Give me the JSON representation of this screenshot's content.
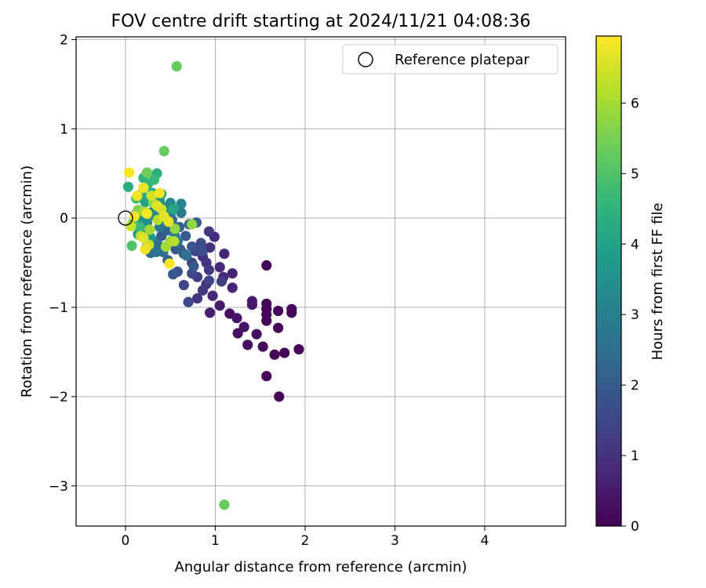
{
  "chart_data": {
    "type": "scatter",
    "title": "FOV centre drift starting at 2024/11/21 04:08:36",
    "xlabel": "Angular distance from reference (arcmin)",
    "ylabel": "Rotation from reference (arcmin)",
    "xlim": [
      -0.55,
      4.9
    ],
    "ylim": [
      -3.45,
      2.03
    ],
    "xticks": [
      0,
      1,
      2,
      3,
      4
    ],
    "yticks": [
      -3,
      -2,
      -1,
      0,
      1,
      2
    ],
    "grid": true,
    "legend": {
      "location": "top-right",
      "entries": [
        {
          "label": "Reference platepar",
          "marker": "open-circle"
        }
      ]
    },
    "reference_point": {
      "x": 0,
      "y": 0
    },
    "colorbar": {
      "label": "Hours from first FF file",
      "range": [
        0,
        6.95
      ],
      "ticks": [
        0,
        1,
        2,
        3,
        4,
        5,
        6
      ],
      "colormap": "viridis",
      "stops": [
        "#440154",
        "#482878",
        "#3e4989",
        "#31688e",
        "#26828e",
        "#1f9e89",
        "#35b779",
        "#6ece58",
        "#b5de2b",
        "#fde725"
      ]
    },
    "series": [
      {
        "points": [
          {
            "x": 1.57,
            "y": -0.53,
            "c": 0.1
          },
          {
            "x": 1.57,
            "y": -0.96,
            "c": 0.1
          },
          {
            "x": 1.57,
            "y": -1.02,
            "c": 0.1
          },
          {
            "x": 1.57,
            "y": -1.08,
            "c": 0.1
          },
          {
            "x": 1.57,
            "y": -1.15,
            "c": 0.1
          },
          {
            "x": 1.7,
            "y": -1.04,
            "c": 0.1
          },
          {
            "x": 1.7,
            "y": -1.23,
            "c": 0.1
          },
          {
            "x": 1.85,
            "y": -1.02,
            "c": 0.1
          },
          {
            "x": 1.85,
            "y": -1.06,
            "c": 0.1
          },
          {
            "x": 1.93,
            "y": -1.47,
            "c": 0.1
          },
          {
            "x": 1.77,
            "y": -1.51,
            "c": 0.1
          },
          {
            "x": 1.66,
            "y": -1.53,
            "c": 0.1
          },
          {
            "x": 1.57,
            "y": -1.77,
            "c": 0.1
          },
          {
            "x": 1.71,
            "y": -2.0,
            "c": 0.1
          },
          {
            "x": 1.53,
            "y": -1.44,
            "c": 0.2
          },
          {
            "x": 1.46,
            "y": -1.3,
            "c": 0.3
          },
          {
            "x": 1.36,
            "y": -1.42,
            "c": 0.3
          },
          {
            "x": 1.25,
            "y": -1.29,
            "c": 0.3
          },
          {
            "x": 1.16,
            "y": -1.07,
            "c": 0.3
          },
          {
            "x": 1.24,
            "y": -1.12,
            "c": 0.4
          },
          {
            "x": 1.32,
            "y": -1.22,
            "c": 0.4
          },
          {
            "x": 1.41,
            "y": -0.93,
            "c": 0.5
          },
          {
            "x": 1.41,
            "y": -0.97,
            "c": 0.5
          },
          {
            "x": 1.05,
            "y": -0.98,
            "c": 0.5
          },
          {
            "x": 0.94,
            "y": -1.06,
            "c": 0.6
          },
          {
            "x": 1.19,
            "y": -0.62,
            "c": 0.7
          },
          {
            "x": 1.19,
            "y": -0.78,
            "c": 0.7
          },
          {
            "x": 1.1,
            "y": -0.4,
            "c": 0.7
          },
          {
            "x": 1.09,
            "y": -0.66,
            "c": 0.8
          },
          {
            "x": 1.05,
            "y": -0.55,
            "c": 0.8
          },
          {
            "x": 0.97,
            "y": -0.87,
            "c": 0.8
          },
          {
            "x": 0.99,
            "y": -0.21,
            "c": 0.9
          },
          {
            "x": 0.94,
            "y": -0.33,
            "c": 1.0
          },
          {
            "x": 0.86,
            "y": -0.43,
            "c": 1.0
          },
          {
            "x": 0.9,
            "y": -0.74,
            "c": 1.0
          },
          {
            "x": 0.9,
            "y": -0.5,
            "c": 1.0
          },
          {
            "x": 0.8,
            "y": -0.9,
            "c": 1.1
          },
          {
            "x": 0.93,
            "y": -0.15,
            "c": 1.1
          },
          {
            "x": 0.86,
            "y": -0.81,
            "c": 1.2
          },
          {
            "x": 0.93,
            "y": -0.58,
            "c": 1.2
          },
          {
            "x": 0.8,
            "y": -0.66,
            "c": 1.3
          },
          {
            "x": 1.07,
            "y": -0.71,
            "c": 1.3
          },
          {
            "x": 0.74,
            "y": -0.5,
            "c": 1.4
          },
          {
            "x": 0.93,
            "y": -0.7,
            "c": 1.4
          },
          {
            "x": 0.7,
            "y": -0.94,
            "c": 1.5
          },
          {
            "x": 0.65,
            "y": -0.75,
            "c": 1.5
          },
          {
            "x": 0.78,
            "y": -0.37,
            "c": 1.5
          },
          {
            "x": 0.84,
            "y": -0.28,
            "c": 1.6
          },
          {
            "x": 0.74,
            "y": -0.62,
            "c": 1.6
          },
          {
            "x": 0.86,
            "y": -0.37,
            "c": 1.7
          },
          {
            "x": 0.58,
            "y": -0.6,
            "c": 1.7
          },
          {
            "x": 0.65,
            "y": -0.4,
            "c": 1.8
          },
          {
            "x": 0.74,
            "y": -0.32,
            "c": 1.8
          },
          {
            "x": 0.76,
            "y": -0.54,
            "c": 1.9
          },
          {
            "x": 0.56,
            "y": -0.35,
            "c": 1.9
          },
          {
            "x": 0.67,
            "y": -0.2,
            "c": 2.0
          },
          {
            "x": 0.53,
            "y": -0.63,
            "c": 2.0
          },
          {
            "x": 0.4,
            "y": -0.2,
            "c": 2.0
          },
          {
            "x": 0.61,
            "y": -0.35,
            "c": 2.1
          },
          {
            "x": 0.47,
            "y": -0.47,
            "c": 2.1
          },
          {
            "x": 0.79,
            "y": -0.05,
            "c": 2.1
          },
          {
            "x": 0.46,
            "y": -0.14,
            "c": 2.2
          },
          {
            "x": 0.6,
            "y": -0.1,
            "c": 2.2
          },
          {
            "x": 0.71,
            "y": -0.07,
            "c": 2.3
          },
          {
            "x": 0.3,
            "y": -0.25,
            "c": 2.3
          },
          {
            "x": 0.28,
            "y": -0.39,
            "c": 2.4
          },
          {
            "x": 0.52,
            "y": -0.02,
            "c": 2.4
          },
          {
            "x": 0.36,
            "y": -0.3,
            "c": 2.5
          },
          {
            "x": 0.42,
            "y": -0.38,
            "c": 2.5
          },
          {
            "x": 0.68,
            "y": -0.42,
            "c": 2.6
          },
          {
            "x": 0.34,
            "y": -0.38,
            "c": 2.6
          },
          {
            "x": 0.45,
            "y": -0.05,
            "c": 2.7
          },
          {
            "x": 0.5,
            "y": 0.04,
            "c": 2.7
          },
          {
            "x": 0.58,
            "y": -0.26,
            "c": 2.8
          },
          {
            "x": 0.38,
            "y": -0.1,
            "c": 2.8
          },
          {
            "x": 0.62,
            "y": 0.06,
            "c": 2.9
          },
          {
            "x": 0.25,
            "y": -0.3,
            "c": 2.9
          },
          {
            "x": 0.55,
            "y": -0.2,
            "c": 3.0
          },
          {
            "x": 0.33,
            "y": 0.02,
            "c": 3.0
          },
          {
            "x": 0.42,
            "y": 0.12,
            "c": 3.1
          },
          {
            "x": 0.2,
            "y": -0.12,
            "c": 3.1
          },
          {
            "x": 0.62,
            "y": 0.16,
            "c": 3.2
          },
          {
            "x": 0.5,
            "y": 0.17,
            "c": 3.3
          },
          {
            "x": 0.3,
            "y": 0.07,
            "c": 3.3
          },
          {
            "x": 0.24,
            "y": -0.05,
            "c": 3.4
          },
          {
            "x": 0.18,
            "y": 0.0,
            "c": 3.5
          },
          {
            "x": 0.38,
            "y": 0.2,
            "c": 3.6
          },
          {
            "x": 0.14,
            "y": -0.18,
            "c": 3.7
          },
          {
            "x": 0.28,
            "y": -0.22,
            "c": 3.8
          },
          {
            "x": 0.12,
            "y": 0.05,
            "c": 3.9
          },
          {
            "x": 0.22,
            "y": 0.18,
            "c": 4.0
          },
          {
            "x": 0.4,
            "y": 0.27,
            "c": 4.1
          },
          {
            "x": 0.53,
            "y": 0.1,
            "c": 4.1
          },
          {
            "x": 0.1,
            "y": -0.04,
            "c": 4.2
          },
          {
            "x": 0.3,
            "y": 0.28,
            "c": 4.2
          },
          {
            "x": 0.18,
            "y": 0.27,
            "c": 4.3
          },
          {
            "x": 0.03,
            "y": 0.35,
            "c": 4.3
          },
          {
            "x": 0.35,
            "y": 0.5,
            "c": 4.4
          },
          {
            "x": 0.2,
            "y": 0.45,
            "c": 4.5
          },
          {
            "x": 0.25,
            "y": 0.38,
            "c": 4.6
          },
          {
            "x": 0.16,
            "y": -0.1,
            "c": 4.7
          },
          {
            "x": 0.32,
            "y": 0.43,
            "c": 4.7
          },
          {
            "x": 0.12,
            "y": 0.22,
            "c": 4.8
          },
          {
            "x": 0.23,
            "y": -0.33,
            "c": 4.8
          },
          {
            "x": 0.08,
            "y": -0.06,
            "c": 4.9
          },
          {
            "x": 0.07,
            "y": -0.31,
            "c": 5.0
          },
          {
            "x": 0.43,
            "y": 0.75,
            "c": 5.3
          },
          {
            "x": 0.57,
            "y": 1.7,
            "c": 5.3
          },
          {
            "x": 1.1,
            "y": -3.21,
            "c": 5.3
          },
          {
            "x": 0.24,
            "y": 0.51,
            "c": 5.4
          },
          {
            "x": 0.14,
            "y": 0.09,
            "c": 5.6
          },
          {
            "x": 0.31,
            "y": 0.17,
            "c": 5.7
          },
          {
            "x": 0.74,
            "y": -0.07,
            "c": 5.8
          },
          {
            "x": 0.55,
            "y": -0.12,
            "c": 5.8
          },
          {
            "x": 0.5,
            "y": -0.26,
            "c": 5.9
          },
          {
            "x": 0.45,
            "y": -0.32,
            "c": 6.0
          },
          {
            "x": 0.27,
            "y": -0.13,
            "c": 6.0
          },
          {
            "x": 0.21,
            "y": 0.07,
            "c": 6.1
          },
          {
            "x": 0.36,
            "y": -0.02,
            "c": 6.2
          },
          {
            "x": 0.54,
            "y": -0.26,
            "c": 6.2
          },
          {
            "x": 0.17,
            "y": -0.2,
            "c": 6.3
          },
          {
            "x": 0.06,
            "y": -0.09,
            "c": 6.4
          },
          {
            "x": 0.4,
            "y": 0.1,
            "c": 6.4
          },
          {
            "x": 0.26,
            "y": -0.3,
            "c": 6.5
          },
          {
            "x": 0.29,
            "y": 0.25,
            "c": 6.5
          },
          {
            "x": 0.2,
            "y": -0.22,
            "c": 6.6
          },
          {
            "x": 0.35,
            "y": 0.14,
            "c": 6.6
          },
          {
            "x": 0.43,
            "y": 0.02,
            "c": 6.7
          },
          {
            "x": 0.48,
            "y": -0.04,
            "c": 6.7
          },
          {
            "x": 0.13,
            "y": 0.25,
            "c": 6.8
          },
          {
            "x": 0.2,
            "y": 0.34,
            "c": 6.8
          },
          {
            "x": 0.22,
            "y": -0.35,
            "c": 6.8
          },
          {
            "x": 0.1,
            "y": 0.02,
            "c": 6.9
          },
          {
            "x": 0.38,
            "y": 0.28,
            "c": 6.9
          },
          {
            "x": 0.49,
            "y": -0.51,
            "c": 6.9
          },
          {
            "x": 0.04,
            "y": 0.51,
            "c": 6.9
          },
          {
            "x": 0.24,
            "y": 0.05,
            "c": 6.9
          }
        ]
      }
    ]
  }
}
